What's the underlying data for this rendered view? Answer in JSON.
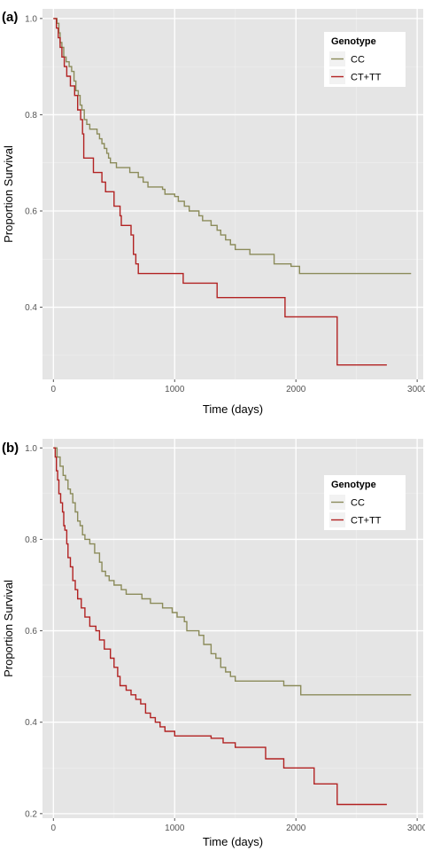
{
  "chart_data": [
    {
      "type": "line",
      "panel": "(a)",
      "xlabel": "Time (days)",
      "ylabel": "Proportion Survival",
      "xlim": [
        -90,
        3050
      ],
      "ylim": [
        0.25,
        1.02
      ],
      "xticks": [
        0,
        1000,
        2000,
        3000
      ],
      "yticks": [
        0.4,
        0.6,
        0.8,
        1.0
      ],
      "ytick_labels": [
        "0.4",
        "0.6",
        "0.8",
        "1.0"
      ],
      "grid": true,
      "legend": {
        "title": "Genotype",
        "placement": "top-right"
      },
      "series": [
        {
          "name": "CC",
          "color": "#8b8b5a",
          "points": [
            [
              0,
              1.0
            ],
            [
              30,
              0.99
            ],
            [
              45,
              0.97
            ],
            [
              55,
              0.95
            ],
            [
              70,
              0.94
            ],
            [
              85,
              0.92
            ],
            [
              105,
              0.91
            ],
            [
              130,
              0.9
            ],
            [
              150,
              0.89
            ],
            [
              170,
              0.87
            ],
            [
              185,
              0.85
            ],
            [
              205,
              0.84
            ],
            [
              220,
              0.82
            ],
            [
              235,
              0.81
            ],
            [
              255,
              0.79
            ],
            [
              275,
              0.78
            ],
            [
              300,
              0.77
            ],
            [
              350,
              0.77
            ],
            [
              360,
              0.76
            ],
            [
              380,
              0.75
            ],
            [
              400,
              0.74
            ],
            [
              420,
              0.73
            ],
            [
              440,
              0.72
            ],
            [
              455,
              0.71
            ],
            [
              470,
              0.7
            ],
            [
              520,
              0.69
            ],
            [
              600,
              0.69
            ],
            [
              630,
              0.68
            ],
            [
              700,
              0.67
            ],
            [
              740,
              0.66
            ],
            [
              780,
              0.65
            ],
            [
              900,
              0.645
            ],
            [
              920,
              0.635
            ],
            [
              1000,
              0.63
            ],
            [
              1030,
              0.62
            ],
            [
              1080,
              0.61
            ],
            [
              1120,
              0.6
            ],
            [
              1200,
              0.59
            ],
            [
              1230,
              0.58
            ],
            [
              1300,
              0.57
            ],
            [
              1350,
              0.56
            ],
            [
              1380,
              0.55
            ],
            [
              1420,
              0.54
            ],
            [
              1460,
              0.53
            ],
            [
              1500,
              0.52
            ],
            [
              1620,
              0.51
            ],
            [
              1820,
              0.49
            ],
            [
              1960,
              0.485
            ],
            [
              2030,
              0.47
            ],
            [
              2950,
              0.47
            ]
          ]
        },
        {
          "name": "CT+TT",
          "color": "#b22222",
          "points": [
            [
              0,
              1.0
            ],
            [
              25,
              0.98
            ],
            [
              40,
              0.96
            ],
            [
              55,
              0.94
            ],
            [
              70,
              0.92
            ],
            [
              90,
              0.9
            ],
            [
              110,
              0.88
            ],
            [
              140,
              0.86
            ],
            [
              175,
              0.84
            ],
            [
              200,
              0.81
            ],
            [
              225,
              0.79
            ],
            [
              240,
              0.76
            ],
            [
              250,
              0.71
            ],
            [
              330,
              0.68
            ],
            [
              400,
              0.66
            ],
            [
              430,
              0.64
            ],
            [
              500,
              0.61
            ],
            [
              550,
              0.59
            ],
            [
              560,
              0.57
            ],
            [
              640,
              0.55
            ],
            [
              660,
              0.51
            ],
            [
              680,
              0.49
            ],
            [
              700,
              0.47
            ],
            [
              1070,
              0.45
            ],
            [
              1350,
              0.42
            ],
            [
              1910,
              0.38
            ],
            [
              2340,
              0.28
            ],
            [
              2750,
              0.28
            ]
          ]
        }
      ]
    },
    {
      "type": "line",
      "panel": "(b)",
      "xlabel": "Time (days)",
      "ylabel": "Proportion Survival",
      "xlim": [
        -90,
        3050
      ],
      "ylim": [
        0.19,
        1.02
      ],
      "xticks": [
        0,
        1000,
        2000,
        3000
      ],
      "yticks": [
        0.2,
        0.4,
        0.6,
        0.8,
        1.0
      ],
      "ytick_labels": [
        "0.2",
        "0.4",
        "0.6",
        "0.8",
        "1.0"
      ],
      "grid": true,
      "legend": {
        "title": "Genotype",
        "placement": "top-right"
      },
      "series": [
        {
          "name": "CC",
          "color": "#8b8b5a",
          "points": [
            [
              0,
              1.0
            ],
            [
              30,
              0.98
            ],
            [
              55,
              0.96
            ],
            [
              80,
              0.94
            ],
            [
              100,
              0.93
            ],
            [
              120,
              0.91
            ],
            [
              140,
              0.9
            ],
            [
              160,
              0.88
            ],
            [
              180,
              0.86
            ],
            [
              200,
              0.84
            ],
            [
              220,
              0.83
            ],
            [
              240,
              0.81
            ],
            [
              260,
              0.8
            ],
            [
              300,
              0.79
            ],
            [
              340,
              0.77
            ],
            [
              380,
              0.75
            ],
            [
              400,
              0.73
            ],
            [
              430,
              0.72
            ],
            [
              460,
              0.71
            ],
            [
              500,
              0.7
            ],
            [
              560,
              0.69
            ],
            [
              600,
              0.68
            ],
            [
              700,
              0.68
            ],
            [
              730,
              0.67
            ],
            [
              800,
              0.66
            ],
            [
              900,
              0.65
            ],
            [
              980,
              0.64
            ],
            [
              1020,
              0.63
            ],
            [
              1080,
              0.62
            ],
            [
              1100,
              0.6
            ],
            [
              1200,
              0.59
            ],
            [
              1240,
              0.57
            ],
            [
              1300,
              0.55
            ],
            [
              1340,
              0.54
            ],
            [
              1380,
              0.52
            ],
            [
              1420,
              0.51
            ],
            [
              1460,
              0.5
            ],
            [
              1500,
              0.49
            ],
            [
              1900,
              0.48
            ],
            [
              2040,
              0.46
            ],
            [
              2950,
              0.46
            ]
          ]
        },
        {
          "name": "CT+TT",
          "color": "#b22222",
          "points": [
            [
              0,
              1.0
            ],
            [
              15,
              0.98
            ],
            [
              25,
              0.95
            ],
            [
              35,
              0.93
            ],
            [
              45,
              0.9
            ],
            [
              60,
              0.88
            ],
            [
              75,
              0.86
            ],
            [
              85,
              0.83
            ],
            [
              95,
              0.82
            ],
            [
              110,
              0.79
            ],
            [
              120,
              0.76
            ],
            [
              140,
              0.74
            ],
            [
              160,
              0.71
            ],
            [
              180,
              0.69
            ],
            [
              200,
              0.67
            ],
            [
              230,
              0.65
            ],
            [
              260,
              0.63
            ],
            [
              300,
              0.61
            ],
            [
              350,
              0.6
            ],
            [
              380,
              0.58
            ],
            [
              420,
              0.56
            ],
            [
              470,
              0.54
            ],
            [
              500,
              0.52
            ],
            [
              530,
              0.5
            ],
            [
              550,
              0.48
            ],
            [
              600,
              0.47
            ],
            [
              640,
              0.46
            ],
            [
              680,
              0.45
            ],
            [
              720,
              0.44
            ],
            [
              760,
              0.42
            ],
            [
              800,
              0.41
            ],
            [
              840,
              0.4
            ],
            [
              880,
              0.39
            ],
            [
              920,
              0.38
            ],
            [
              1000,
              0.37
            ],
            [
              1300,
              0.365
            ],
            [
              1400,
              0.355
            ],
            [
              1500,
              0.345
            ],
            [
              1750,
              0.32
            ],
            [
              1900,
              0.3
            ],
            [
              2150,
              0.265
            ],
            [
              2340,
              0.22
            ],
            [
              2750,
              0.22
            ]
          ]
        }
      ]
    }
  ]
}
